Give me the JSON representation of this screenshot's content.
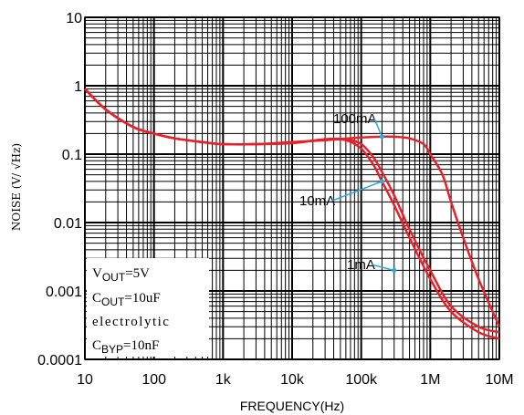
{
  "chart_data": {
    "type": "line",
    "xscale": "log",
    "yscale": "log",
    "xlim": [
      10,
      10000000
    ],
    "ylim": [
      0.0001,
      10
    ],
    "grid": true,
    "xlabel": "FREQUENCY(Hz)",
    "ylabel": "NOISE (V/  √Hz)",
    "x_tick_labels": [
      "10",
      "100",
      "1k",
      "10k",
      "100k",
      "1M",
      "10M"
    ],
    "y_tick_labels": [
      "0.0001",
      "0.001",
      "0.01",
      "0.1",
      "1",
      "10"
    ],
    "line_color": "#e8202a",
    "annotation_arrow_color": "#2aa8e0",
    "series": [
      {
        "name": "100mA",
        "x": [
          10,
          20,
          50,
          100,
          200,
          500,
          1000,
          3000,
          10000,
          30000,
          100000,
          200000,
          300000,
          500000,
          800000,
          1000000,
          1500000,
          2000000,
          3000000,
          5000000,
          10000000
        ],
        "y": [
          0.9,
          0.45,
          0.25,
          0.2,
          0.17,
          0.15,
          0.14,
          0.14,
          0.15,
          0.16,
          0.175,
          0.18,
          0.18,
          0.17,
          0.14,
          0.1,
          0.05,
          0.02,
          0.006,
          0.0015,
          0.0003
        ]
      },
      {
        "name": "10mA",
        "x": [
          10,
          20,
          50,
          100,
          200,
          500,
          1000,
          3000,
          10000,
          30000,
          60000,
          100000,
          150000,
          200000,
          300000,
          500000,
          1000000,
          2000000,
          5000000,
          10000000
        ],
        "y": [
          0.9,
          0.45,
          0.25,
          0.2,
          0.17,
          0.15,
          0.14,
          0.14,
          0.145,
          0.165,
          0.16,
          0.12,
          0.07,
          0.04,
          0.018,
          0.006,
          0.0015,
          0.0005,
          0.00025,
          0.0002
        ]
      },
      {
        "name": "1mA",
        "x": [
          10,
          20,
          50,
          100,
          200,
          500,
          1000,
          3000,
          10000,
          30000,
          60000,
          100000,
          150000,
          200000,
          300000,
          500000,
          1000000,
          2000000,
          5000000,
          10000000
        ],
        "y": [
          0.9,
          0.45,
          0.25,
          0.2,
          0.17,
          0.15,
          0.14,
          0.14,
          0.145,
          0.165,
          0.165,
          0.14,
          0.09,
          0.055,
          0.025,
          0.008,
          0.002,
          0.0006,
          0.0003,
          0.00025
        ]
      }
    ],
    "annotations": [
      {
        "text": "100mA",
        "arrow_to": [
          200000,
          0.18
        ]
      },
      {
        "text": "10mA",
        "arrow_to": [
          200000,
          0.04
        ]
      },
      {
        "text": "1mA",
        "arrow_to": [
          300000,
          0.002
        ]
      }
    ],
    "conditions_box": {
      "lines": [
        {
          "main": "V",
          "sub": "OUT",
          "rest": "=5V"
        },
        {
          "main": "C",
          "sub": "OUT",
          "rest": "=10uF"
        },
        {
          "main": "electrolytic",
          "sub": "",
          "rest": ""
        },
        {
          "main": "C",
          "sub": "BYP",
          "rest": "=10nF"
        }
      ]
    }
  }
}
